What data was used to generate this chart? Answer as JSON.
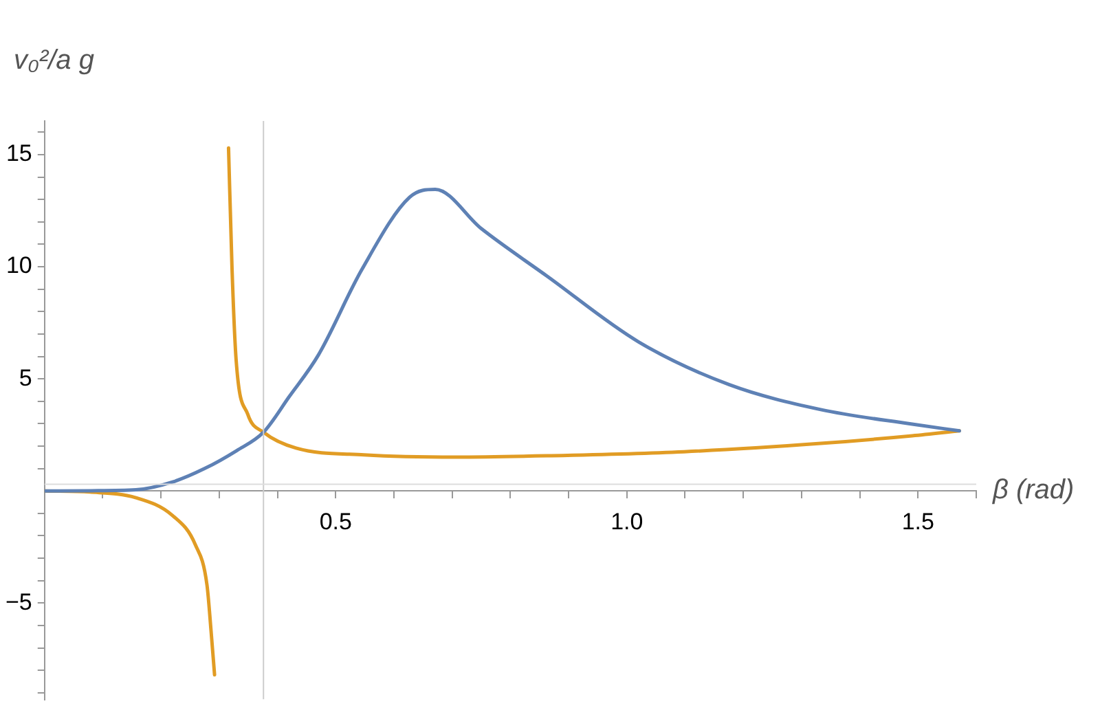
{
  "chart_data": {
    "type": "line",
    "xlabel": "β (rad)",
    "ylabel": "v₀²/a g",
    "xlim": [
      0,
      1.6
    ],
    "ylim": [
      -9.3,
      16.5
    ],
    "xticks": [
      {
        "value": 0.1,
        "label": null
      },
      {
        "value": 0.2,
        "label": null
      },
      {
        "value": 0.3,
        "label": null
      },
      {
        "value": 0.4,
        "label": null
      },
      {
        "value": 0.5,
        "label": "0.5"
      },
      {
        "value": 0.6,
        "label": null
      },
      {
        "value": 0.7,
        "label": null
      },
      {
        "value": 0.8,
        "label": null
      },
      {
        "value": 0.9,
        "label": null
      },
      {
        "value": 1,
        "label": "1.0"
      },
      {
        "value": 1.1,
        "label": null
      },
      {
        "value": 1.2,
        "label": null
      },
      {
        "value": 1.3,
        "label": null
      },
      {
        "value": 1.4,
        "label": null
      },
      {
        "value": 1.5,
        "label": "1.5"
      },
      {
        "value": 1.6,
        "label": null
      }
    ],
    "yticks": [
      {
        "value": -9,
        "label": null
      },
      {
        "value": -8,
        "label": null
      },
      {
        "value": -7,
        "label": null
      },
      {
        "value": -6,
        "label": null
      },
      {
        "value": -5,
        "label": "−5"
      },
      {
        "value": -4,
        "label": null
      },
      {
        "value": -3,
        "label": null
      },
      {
        "value": -2,
        "label": null
      },
      {
        "value": -1,
        "label": null
      },
      {
        "value": 1,
        "label": null
      },
      {
        "value": 2,
        "label": null
      },
      {
        "value": 3,
        "label": null
      },
      {
        "value": 4,
        "label": null
      },
      5,
      {
        "value": 6,
        "label": null
      },
      {
        "value": 7,
        "label": null
      },
      {
        "value": 8,
        "label": null
      },
      {
        "value": 9,
        "label": null
      },
      10,
      {
        "value": 11,
        "label": null
      },
      {
        "value": 12,
        "label": null
      },
      {
        "value": 13,
        "label": null
      },
      {
        "value": 14,
        "label": null
      },
      15,
      {
        "value": 16,
        "label": null
      }
    ],
    "grid": false,
    "legend": false,
    "marker": "none",
    "line_style": "solid",
    "ref_lines": [
      {
        "axis": "x",
        "value": 0.376,
        "color": "#cccccc"
      },
      {
        "axis": "y",
        "value": 0.3,
        "color": "#dddddd"
      }
    ],
    "series": [
      {
        "color": "#5e81b5",
        "x": [
          0,
          0.08,
          0.157,
          0.22,
          0.275,
          0.33,
          0.376,
          0.42,
          0.47,
          0.545,
          0.627,
          0.671,
          0.75,
          0.863,
          1.02,
          1.176,
          1.333,
          1.49,
          1.571
        ],
        "values": [
          0,
          0.01,
          0.05,
          0.4,
          1.0,
          1.8,
          2.62,
          4.2,
          6.05,
          9.88,
          13.1,
          13.45,
          11.7,
          9.58,
          6.65,
          4.74,
          3.63,
          2.98,
          2.68
        ]
      },
      {
        "color": "#e19c24",
        "x": [
          0,
          0.078,
          0.157,
          0.22,
          0.259,
          0.279,
          0.286,
          0.292
        ],
        "values": [
          0,
          -0.05,
          -0.3,
          -1.1,
          -2.4,
          -4.2,
          -6.25,
          -8.2
        ]
      },
      {
        "color": "#e19c24",
        "x": [
          0.316,
          0.322,
          0.329,
          0.349,
          0.376,
          0.432,
          0.549,
          0.706,
          0.863,
          1.098,
          1.333,
          1.49,
          1.571
        ],
        "values": [
          15.3,
          9.9,
          5.85,
          3.42,
          2.62,
          1.91,
          1.61,
          1.51,
          1.57,
          1.75,
          2.12,
          2.46,
          2.68
        ]
      }
    ]
  }
}
